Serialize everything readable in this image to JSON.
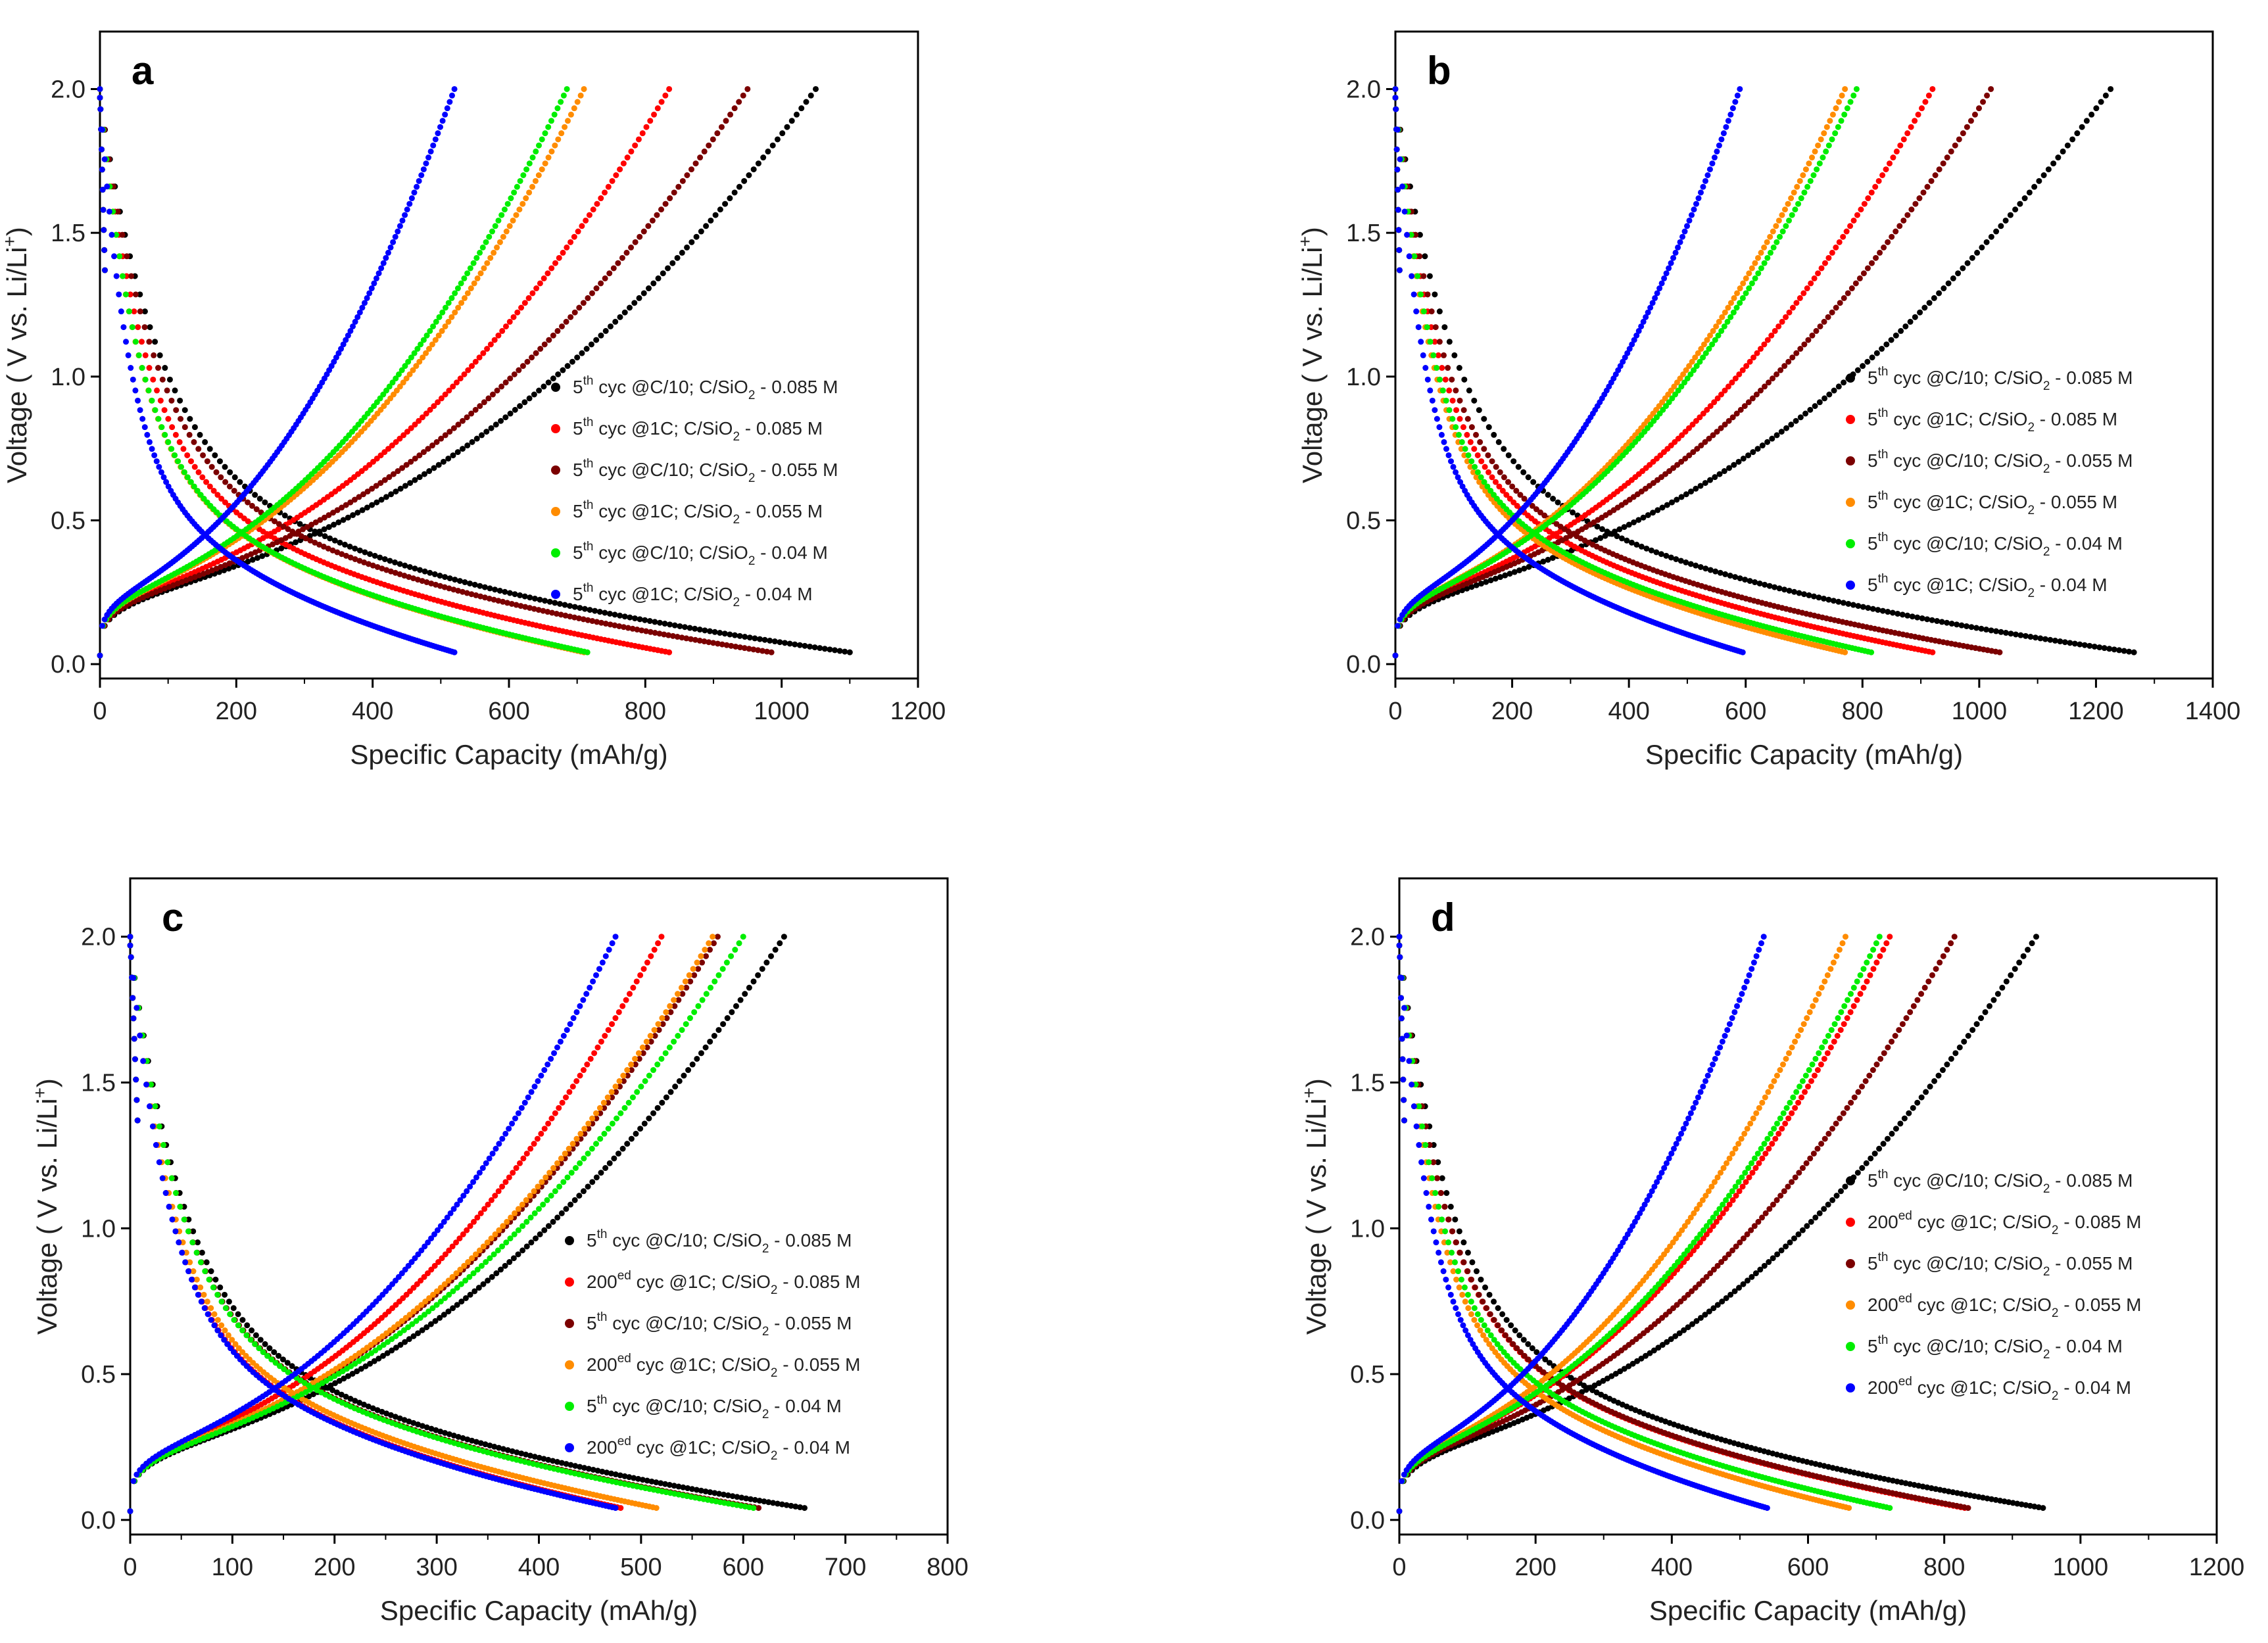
{
  "figure": {
    "background": "#ffffff"
  },
  "chart_data": [
    {
      "panel": "a",
      "type": "scatter",
      "xlabel": "Specific Capacity (mAh/g)",
      "ylabel": "Voltage ( V vs. Li/Li+)",
      "ylabel_parts": [
        "Voltage ( V vs. Li/Li",
        "+",
        ")"
      ],
      "xlim": [
        0,
        1200
      ],
      "ylim": [
        -0.05,
        2.2
      ],
      "xticks": [
        0,
        200,
        400,
        600,
        800,
        1000,
        1200
      ],
      "yticks": [
        0.0,
        0.5,
        1.0,
        1.5,
        2.0
      ],
      "legend_position": "center-right",
      "series": [
        {
          "name": "5th cyc @C/10; C/SiO2 - 0.085 M",
          "parts": [
            "5",
            "th",
            " cyc @C/10; C/SiO",
            "2",
            " - 0.085 M"
          ],
          "color": "#000000",
          "discharge_cap": 1100,
          "charge_cap": 1050
        },
        {
          "name": "5th cyc @1C; C/SiO2 - 0.085 M",
          "parts": [
            "5",
            "th",
            " cyc @1C; C/SiO",
            "2",
            " - 0.085 M"
          ],
          "color": "#ff0000",
          "discharge_cap": 835,
          "charge_cap": 835
        },
        {
          "name": "5th cyc @C/10; C/SiO2 - 0.055 M",
          "parts": [
            "5",
            "th",
            " cyc @C/10; C/SiO",
            "2",
            " - 0.055 M"
          ],
          "color": "#7b0000",
          "discharge_cap": 985,
          "charge_cap": 950
        },
        {
          "name": "5th cyc @1C; C/SiO2 - 0.055 M",
          "parts": [
            "5",
            "th",
            " cyc @1C; C/SiO",
            "2",
            " - 0.055 M"
          ],
          "color": "#ff8c00",
          "discharge_cap": 710,
          "charge_cap": 710
        },
        {
          "name": "5th cyc @C/10; C/SiO2 - 0.04 M",
          "parts": [
            "5",
            "th",
            " cyc @C/10; C/SiO",
            "2",
            " - 0.04 M"
          ],
          "color": "#00ee00",
          "discharge_cap": 715,
          "charge_cap": 685
        },
        {
          "name": "5th cyc @1C; C/SiO2 - 0.04 M",
          "parts": [
            "5",
            "th",
            " cyc @1C; C/SiO",
            "2",
            " - 0.04 M"
          ],
          "color": "#0000ff",
          "discharge_cap": 520,
          "charge_cap": 520
        }
      ]
    },
    {
      "panel": "b",
      "type": "scatter",
      "xlabel": "Specific Capacity (mAh/g)",
      "ylabel": "Voltage ( V vs. Li/Li+)",
      "ylabel_parts": [
        "Voltage ( V vs. Li/Li",
        "+",
        ")"
      ],
      "xlim": [
        0,
        1400
      ],
      "ylim": [
        -0.05,
        2.2
      ],
      "xticks": [
        0,
        200,
        400,
        600,
        800,
        1000,
        1200,
        1400
      ],
      "yticks": [
        0.0,
        0.5,
        1.0,
        1.5,
        2.0
      ],
      "legend_position": "center-right",
      "series": [
        {
          "name": "5th cyc @C/10; C/SiO2 - 0.085 M",
          "parts": [
            "5",
            "th",
            " cyc @C/10; C/SiO",
            "2",
            " - 0.085 M"
          ],
          "color": "#000000",
          "discharge_cap": 1265,
          "charge_cap": 1225
        },
        {
          "name": "5th cyc @1C; C/SiO2 - 0.085 M",
          "parts": [
            "5",
            "th",
            " cyc @1C; C/SiO",
            "2",
            " - 0.085 M"
          ],
          "color": "#ff0000",
          "discharge_cap": 920,
          "charge_cap": 920
        },
        {
          "name": "5th cyc @C/10; C/SiO2 - 0.055 M",
          "parts": [
            "5",
            "th",
            " cyc @C/10; C/SiO",
            "2",
            " - 0.055 M"
          ],
          "color": "#7b0000",
          "discharge_cap": 1035,
          "charge_cap": 1020
        },
        {
          "name": "5th cyc @1C; C/SiO2 - 0.055 M",
          "parts": [
            "5",
            "th",
            " cyc @1C; C/SiO",
            "2",
            " - 0.055 M"
          ],
          "color": "#ff8c00",
          "discharge_cap": 770,
          "charge_cap": 770
        },
        {
          "name": "5th cyc @C/10; C/SiO2 - 0.04 M",
          "parts": [
            "5",
            "th",
            " cyc @C/10; C/SiO",
            "2",
            " - 0.04 M"
          ],
          "color": "#00ee00",
          "discharge_cap": 815,
          "charge_cap": 790
        },
        {
          "name": "5th cyc @1C; C/SiO2 - 0.04 M",
          "parts": [
            "5",
            "th",
            " cyc @1C; C/SiO",
            "2",
            " - 0.04 M"
          ],
          "color": "#0000ff",
          "discharge_cap": 595,
          "charge_cap": 590
        }
      ]
    },
    {
      "panel": "c",
      "type": "scatter",
      "xlabel": "Specific Capacity (mAh/g)",
      "ylabel": "Voltage ( V vs. Li/Li+)",
      "ylabel_parts": [
        "Voltage ( V vs. Li/Li",
        "+",
        ")"
      ],
      "xlim": [
        0,
        800
      ],
      "ylim": [
        -0.05,
        2.2
      ],
      "xticks": [
        0,
        100,
        200,
        300,
        400,
        500,
        600,
        700,
        800
      ],
      "yticks": [
        0.0,
        0.5,
        1.0,
        1.5,
        2.0
      ],
      "legend_position": "center-right",
      "series": [
        {
          "name": "5th cyc @C/10; C/SiO2 - 0.085 M",
          "parts": [
            "5",
            "th",
            " cyc @C/10; C/SiO",
            "2",
            " - 0.085 M"
          ],
          "color": "#000000",
          "discharge_cap": 660,
          "charge_cap": 640
        },
        {
          "name": "200ed cyc @1C; C/SiO2 - 0.085 M",
          "parts": [
            "200",
            "ed",
            " cyc @1C; C/SiO",
            "2",
            " - 0.085 M"
          ],
          "color": "#ff0000",
          "discharge_cap": 480,
          "charge_cap": 520
        },
        {
          "name": "5th cyc @C/10; C/SiO2 - 0.055 M",
          "parts": [
            "5",
            "th",
            " cyc @C/10; C/SiO",
            "2",
            " - 0.055 M"
          ],
          "color": "#7b0000",
          "discharge_cap": 615,
          "charge_cap": 575
        },
        {
          "name": "200ed cyc @1C; C/SiO2 - 0.055 M",
          "parts": [
            "200",
            "ed",
            " cyc @1C; C/SiO",
            "2",
            " - 0.055 M"
          ],
          "color": "#ff8c00",
          "discharge_cap": 515,
          "charge_cap": 570
        },
        {
          "name": "5th cyc @C/10; C/SiO2 - 0.04 M",
          "parts": [
            "5",
            "th",
            " cyc @C/10; C/SiO",
            "2",
            " - 0.04 M"
          ],
          "color": "#00ee00",
          "discharge_cap": 610,
          "charge_cap": 600
        },
        {
          "name": "200ed cyc @1C; C/SiO2 - 0.04 M",
          "parts": [
            "200",
            "ed",
            " cyc @1C; C/SiO",
            "2",
            " - 0.04 M"
          ],
          "color": "#0000ff",
          "discharge_cap": 475,
          "charge_cap": 475
        }
      ]
    },
    {
      "panel": "d",
      "type": "scatter",
      "xlabel": "Specific Capacity (mAh/g)",
      "ylabel": "Voltage ( V vs. Li/Li+)",
      "ylabel_parts": [
        "Voltage ( V vs. Li/Li",
        "+",
        ")"
      ],
      "xlim": [
        0,
        1200
      ],
      "ylim": [
        -0.05,
        2.2
      ],
      "xticks": [
        0,
        200,
        400,
        600,
        800,
        1000,
        1200
      ],
      "yticks": [
        0.0,
        0.5,
        1.0,
        1.5,
        2.0
      ],
      "legend_position": "center-right",
      "series": [
        {
          "name": "5th cyc @C/10; C/SiO2 - 0.085 M",
          "parts": [
            "5",
            "th",
            " cyc @C/10; C/SiO",
            "2",
            " - 0.085 M"
          ],
          "color": "#000000",
          "discharge_cap": 945,
          "charge_cap": 935
        },
        {
          "name": "200ed cyc @1C; C/SiO2 - 0.085 M",
          "parts": [
            "200",
            "ed",
            " cyc @1C; C/SiO",
            "2",
            " - 0.085 M"
          ],
          "color": "#ff0000",
          "discharge_cap": 830,
          "charge_cap": 720
        },
        {
          "name": "5th cyc @C/10; C/SiO2 - 0.055 M",
          "parts": [
            "5",
            "th",
            " cyc @C/10; C/SiO",
            "2",
            " - 0.055 M"
          ],
          "color": "#7b0000",
          "discharge_cap": 835,
          "charge_cap": 815
        },
        {
          "name": "200ed cyc @1C; C/SiO2 - 0.055 M",
          "parts": [
            "200",
            "ed",
            " cyc @1C; C/SiO",
            "2",
            " - 0.055 M"
          ],
          "color": "#ff8c00",
          "discharge_cap": 660,
          "charge_cap": 655
        },
        {
          "name": "5th cyc @C/10; C/SiO2 - 0.04 M",
          "parts": [
            "5",
            "th",
            " cyc @C/10; C/SiO",
            "2",
            " - 0.04 M"
          ],
          "color": "#00ee00",
          "discharge_cap": 720,
          "charge_cap": 705
        },
        {
          "name": "200ed cyc @1C; C/SiO2 - 0.04 M",
          "parts": [
            "200",
            "ed",
            " cyc @1C; C/SiO",
            "2",
            " - 0.04 M"
          ],
          "color": "#0000ff",
          "discharge_cap": 540,
          "charge_cap": 535
        }
      ]
    }
  ]
}
